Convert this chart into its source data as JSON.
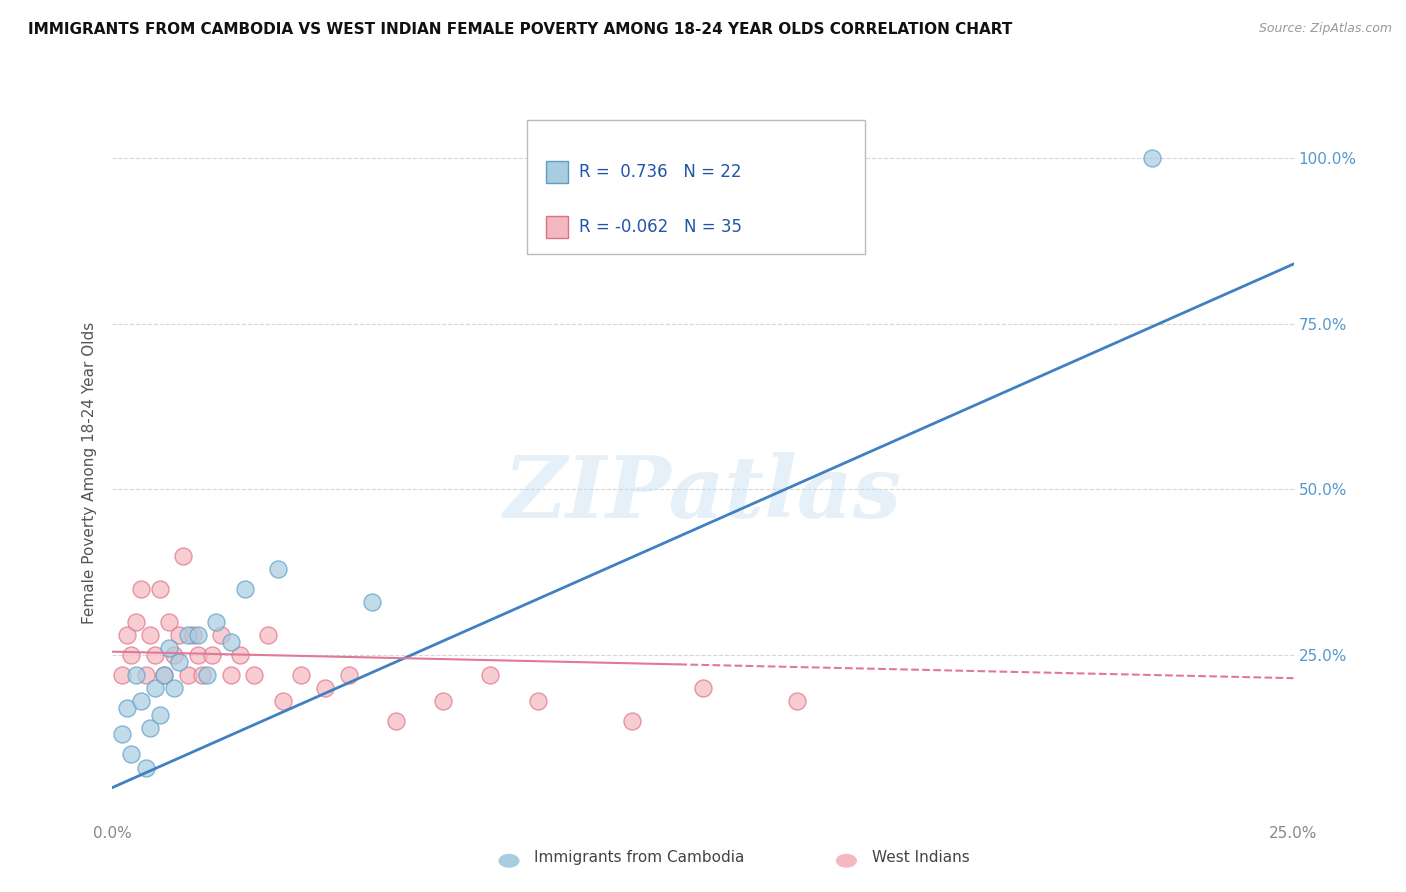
{
  "title": "IMMIGRANTS FROM CAMBODIA VS WEST INDIAN FEMALE POVERTY AMONG 18-24 YEAR OLDS CORRELATION CHART",
  "source": "Source: ZipAtlas.com",
  "ylabel": "Female Poverty Among 18-24 Year Olds",
  "xlim": [
    0.0,
    0.25
  ],
  "ylim": [
    0.0,
    1.05
  ],
  "yticks": [
    0.0,
    0.25,
    0.5,
    0.75,
    1.0
  ],
  "yticklabels_right": [
    "",
    "25.0%",
    "50.0%",
    "75.0%",
    "100.0%"
  ],
  "legend1_r": "0.736",
  "legend1_n": "22",
  "legend2_r": "-0.062",
  "legend2_n": "35",
  "watermark": "ZIPatlas",
  "blue_scatter_color": "#a8cce0",
  "blue_edge_color": "#5b9fc8",
  "pink_scatter_color": "#f4b8c0",
  "pink_edge_color": "#e0708a",
  "blue_line_color": "#4080c0",
  "pink_line_color": "#e07898",
  "grid_color": "#cccccc",
  "background_color": "#ffffff",
  "tick_color": "#888888",
  "right_tick_color": "#5599cc",
  "cambodia_x": [
    0.002,
    0.003,
    0.004,
    0.005,
    0.006,
    0.007,
    0.008,
    0.009,
    0.01,
    0.011,
    0.012,
    0.013,
    0.014,
    0.016,
    0.018,
    0.02,
    0.022,
    0.025,
    0.028,
    0.035,
    0.055,
    0.22
  ],
  "cambodia_y": [
    0.13,
    0.17,
    0.1,
    0.22,
    0.18,
    0.08,
    0.14,
    0.2,
    0.16,
    0.22,
    0.26,
    0.2,
    0.24,
    0.28,
    0.28,
    0.22,
    0.3,
    0.27,
    0.35,
    0.38,
    0.33,
    1.0
  ],
  "westindian_x": [
    0.002,
    0.003,
    0.004,
    0.005,
    0.006,
    0.007,
    0.008,
    0.009,
    0.01,
    0.011,
    0.012,
    0.013,
    0.014,
    0.015,
    0.016,
    0.017,
    0.018,
    0.019,
    0.021,
    0.023,
    0.025,
    0.027,
    0.03,
    0.033,
    0.036,
    0.04,
    0.045,
    0.05,
    0.06,
    0.07,
    0.08,
    0.09,
    0.11,
    0.125,
    0.145
  ],
  "westindian_y": [
    0.22,
    0.28,
    0.25,
    0.3,
    0.35,
    0.22,
    0.28,
    0.25,
    0.35,
    0.22,
    0.3,
    0.25,
    0.28,
    0.4,
    0.22,
    0.28,
    0.25,
    0.22,
    0.25,
    0.28,
    0.22,
    0.25,
    0.22,
    0.28,
    0.18,
    0.22,
    0.2,
    0.22,
    0.15,
    0.18,
    0.22,
    0.18,
    0.15,
    0.2,
    0.18
  ],
  "blue_trend_x0": 0.0,
  "blue_trend_y0": 0.05,
  "blue_trend_x1": 0.25,
  "blue_trend_y1": 0.84,
  "pink_trend_x0": 0.0,
  "pink_trend_y0": 0.255,
  "pink_trend_x1": 0.25,
  "pink_trend_y1": 0.215
}
